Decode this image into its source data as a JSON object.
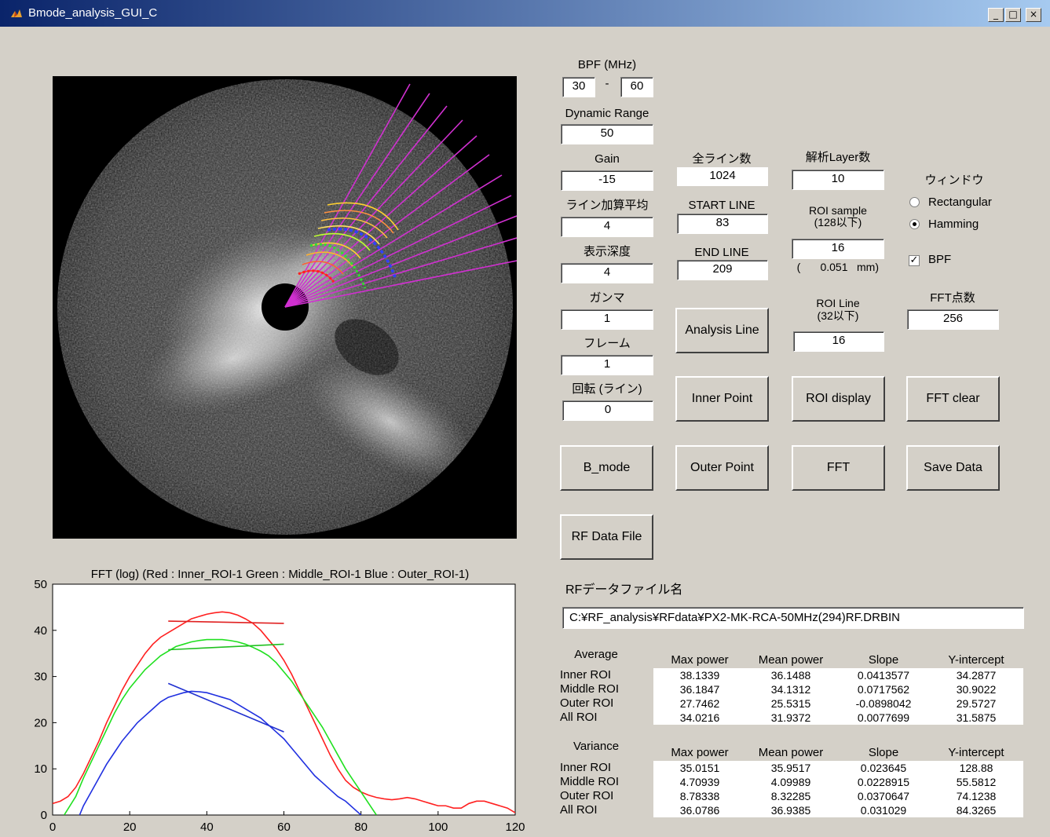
{
  "window": {
    "title": "Bmode_analysis_GUI_C",
    "min_label": "_",
    "max_label": "□",
    "close_label": "×"
  },
  "params": {
    "bpf_label": "BPF (MHz)",
    "bpf_low": "30",
    "bpf_sep": "-",
    "bpf_high": "60",
    "dynamic_range_label": "Dynamic Range",
    "dynamic_range": "50",
    "gain_label": "Gain",
    "gain": "-15",
    "line_avg_label": "ライン加算平均",
    "line_avg": "4",
    "depth_label": "表示深度",
    "depth": "4",
    "gamma_label": "ガンマ",
    "gamma": "1",
    "frame_label": "フレーム",
    "frame": "1",
    "rotate_label": "回転 (ライン)",
    "rotate": "0"
  },
  "lines": {
    "total_label": "全ライン数",
    "total": "1024",
    "start_label": "START LINE",
    "start": "83",
    "end_label": "END LINE",
    "end": "209"
  },
  "roi": {
    "layers_label": "解析Layer数",
    "layers": "10",
    "sample_label_1": "ROI sample",
    "sample_label_2": "(128以下)",
    "sample": "16",
    "sample_mm_open": "(",
    "sample_mm": "0.051",
    "sample_mm_unit": "mm)",
    "line_label_1": "ROI Line",
    "line_label_2": "(32以下)",
    "line": "16"
  },
  "window_fn": {
    "label": "ウィンドウ",
    "rect_label": "Rectangular",
    "hamming_label": "Hamming",
    "selected": "Hamming",
    "bpf_check_label": "BPF",
    "bpf_check_mark": "✓",
    "fft_points_label": "FFT点数",
    "fft_points": "256"
  },
  "buttons": {
    "analysis_line": "Analysis Line",
    "inner_point": "Inner Point",
    "roi_display": "ROI display",
    "fft_clear": "FFT clear",
    "b_mode": "B_mode",
    "outer_point": "Outer Point",
    "fft": "FFT",
    "save_data": "Save Data",
    "rf_data_file": "RF Data File"
  },
  "rf_file": {
    "label": "RFデータファイル名",
    "path": "C:¥RF_analysis¥RFdata¥PX2-MK-RCA-50MHz(294)RF.DRBIN"
  },
  "average_table": {
    "title": "Average",
    "columns": [
      "Max power",
      "Mean power",
      "Slope",
      "Y-intercept"
    ],
    "rows": [
      {
        "label": "Inner ROI",
        "values": [
          "38.1339",
          "36.1488",
          "0.0413577",
          "34.2877"
        ]
      },
      {
        "label": "Middle ROI",
        "values": [
          "36.1847",
          "34.1312",
          "0.0717562",
          "30.9022"
        ]
      },
      {
        "label": "Outer ROI",
        "values": [
          "27.7462",
          "25.5315",
          "-0.0898042",
          "29.5727"
        ]
      },
      {
        "label": "All ROI",
        "values": [
          "34.0216",
          "31.9372",
          "0.0077699",
          "31.5875"
        ]
      }
    ]
  },
  "variance_table": {
    "title": "Variance",
    "columns": [
      "Max power",
      "Mean power",
      "Slope",
      "Y-intercept"
    ],
    "rows": [
      {
        "label": "Inner ROI",
        "values": [
          "35.0151",
          "35.9517",
          "0.023645",
          "128.88"
        ]
      },
      {
        "label": "Middle ROI",
        "values": [
          "4.70939",
          "4.09989",
          "0.0228915",
          "55.5812"
        ]
      },
      {
        "label": "Outer ROI",
        "values": [
          "8.78338",
          "8.32285",
          "0.0370647",
          "74.1238"
        ]
      },
      {
        "label": "All ROI",
        "values": [
          "36.0786",
          "36.9385",
          "0.031029",
          "84.3265"
        ]
      }
    ]
  },
  "chart_data": {
    "type": "line",
    "title": "FFT (log) (Red : Inner_ROI-1  Green : Middle_ROI-1  Blue : Outer_ROI-1)",
    "xlabel": "",
    "ylabel": "",
    "xlim": [
      0,
      120
    ],
    "ylim": [
      0,
      50
    ],
    "xticks": [
      0,
      20,
      40,
      60,
      80,
      100,
      120
    ],
    "yticks": [
      0,
      10,
      20,
      30,
      40,
      50
    ],
    "grid": false,
    "series": [
      {
        "color": "#ff2020",
        "x": [
          0,
          2,
          4,
          6,
          8,
          10,
          12,
          14,
          16,
          18,
          20,
          22,
          24,
          26,
          28,
          30,
          32,
          34,
          36,
          38,
          40,
          42,
          44,
          46,
          48,
          50,
          52,
          54,
          56,
          58,
          60,
          62,
          64,
          66,
          68,
          70,
          72,
          74,
          76,
          78,
          80,
          82,
          84,
          86,
          88,
          90,
          92,
          94,
          96,
          98,
          100,
          102,
          104,
          106,
          108,
          110,
          112,
          114,
          116,
          118,
          120
        ],
        "y": [
          2.5,
          3,
          4,
          6,
          9,
          12.5,
          16,
          20,
          23.5,
          27,
          30,
          32.5,
          35,
          37,
          38.5,
          39.5,
          40.5,
          41.5,
          42.5,
          43,
          43.5,
          43.8,
          44,
          43.8,
          43.3,
          42.5,
          41.5,
          40,
          38,
          36,
          33.5,
          30.5,
          27,
          23.5,
          20,
          16.5,
          13,
          10,
          7.5,
          6,
          5,
          4.3,
          3.8,
          3.5,
          3.3,
          3.5,
          3.8,
          3.5,
          3,
          2.5,
          2,
          2,
          1.5,
          1.5,
          2.5,
          3,
          3,
          2.5,
          2,
          1.5,
          0.5
        ]
      },
      {
        "color": "#20e020",
        "x": [
          3,
          6,
          8,
          10,
          12,
          14,
          16,
          18,
          20,
          22,
          24,
          26,
          28,
          30,
          32,
          34,
          36,
          38,
          40,
          42,
          44,
          46,
          48,
          50,
          52,
          54,
          56,
          58,
          60,
          62,
          64,
          66,
          68,
          70,
          72,
          74,
          76,
          78,
          80,
          82,
          84
        ],
        "y": [
          0,
          4,
          8,
          11.5,
          15,
          18.5,
          22,
          25,
          27.5,
          29.5,
          31.5,
          33,
          34.5,
          35.5,
          36.5,
          37,
          37.5,
          37.8,
          38,
          38,
          38,
          37.8,
          37.5,
          37,
          36.3,
          35.5,
          34.5,
          33,
          31,
          29,
          26.5,
          24,
          21.5,
          19,
          16,
          13,
          10,
          7.5,
          5,
          2.5,
          0
        ]
      },
      {
        "color": "#2030e0",
        "x": [
          7,
          8,
          10,
          12,
          14,
          16,
          18,
          20,
          22,
          24,
          26,
          28,
          30,
          32,
          34,
          36,
          38,
          40,
          42,
          44,
          46,
          48,
          50,
          52,
          54,
          56,
          58,
          60,
          62,
          64,
          66,
          68,
          70,
          72,
          74,
          76,
          78,
          80
        ],
        "y": [
          0,
          2,
          5,
          8,
          11,
          13.5,
          16,
          18,
          20,
          21.5,
          23,
          24.5,
          25.5,
          26,
          26.5,
          26.8,
          26.7,
          26.5,
          26,
          25.5,
          25,
          24,
          23,
          22,
          21,
          19.5,
          18,
          16.5,
          14.5,
          12.5,
          10.5,
          8.5,
          7,
          5.5,
          4,
          3,
          1.5,
          0
        ]
      }
    ],
    "fit_lines": [
      {
        "color": "#e02020",
        "x": [
          30,
          60
        ],
        "y": [
          42,
          41.5
        ]
      },
      {
        "color": "#20c020",
        "x": [
          30,
          60
        ],
        "y": [
          35.8,
          37
        ]
      },
      {
        "color": "#2030d0",
        "x": [
          30,
          60
        ],
        "y": [
          28.5,
          18
        ]
      }
    ]
  }
}
